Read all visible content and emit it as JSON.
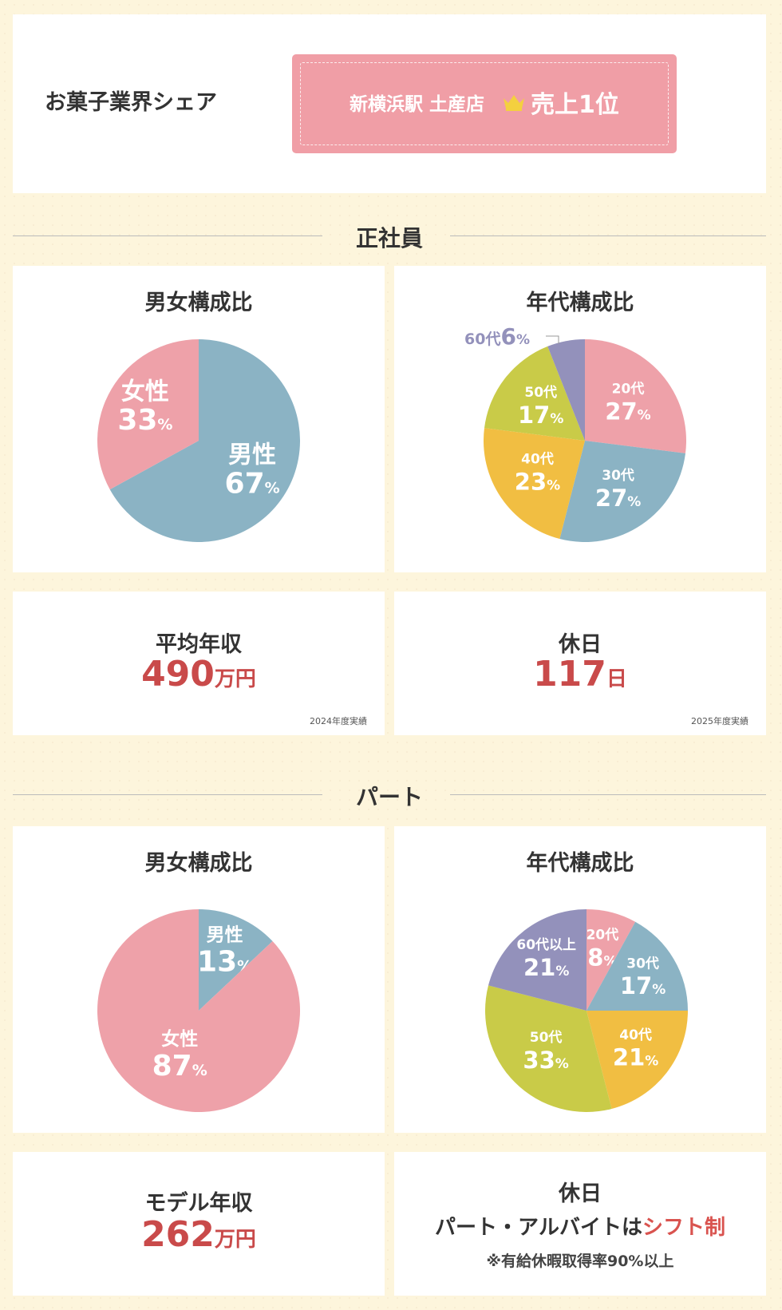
{
  "share": {
    "title": "お菓子業界シェア",
    "store": "新横浜駅 土産店",
    "rank": "売上1位",
    "crown_icon": "crown-icon",
    "color": "#f09ea6"
  },
  "colors": {
    "male": "#8bb3c4",
    "female": "#eea1a9",
    "age20": "#eea1a9",
    "age30": "#8bb3c4",
    "age40": "#f1be42",
    "age50": "#c9cb48",
    "age60": "#9391bb",
    "accent": "#c94a4a"
  },
  "fulltime": {
    "heading": "正社員",
    "salary": {
      "title": "平均年収",
      "value": "490",
      "unit": "万円",
      "note": "2024年度実績"
    },
    "holidays": {
      "title": "休日",
      "value": "117",
      "unit": "日",
      "note": "2025年度実績"
    }
  },
  "parttime": {
    "heading": "パート",
    "salary": {
      "title": "モデル年収",
      "value": "262",
      "unit": "万円"
    },
    "holidays": {
      "title": "休日",
      "shift_prefix": "パート・アルバイトは",
      "shift_accent": "シフト制",
      "note": "※有給休暇取得率90%以上"
    }
  },
  "chart_data": [
    {
      "type": "pie",
      "title": "男女構成比",
      "group": "正社員",
      "slices": [
        {
          "label": "男性",
          "value": 67,
          "display": "67",
          "unit": "%",
          "color": "#8bb3c4"
        },
        {
          "label": "女性",
          "value": 33,
          "display": "33",
          "unit": "%",
          "color": "#eea1a9"
        }
      ]
    },
    {
      "type": "pie",
      "title": "年代構成比",
      "group": "正社員",
      "slices": [
        {
          "label": "20代",
          "value": 27,
          "display": "27",
          "unit": "%",
          "color": "#eea1a9"
        },
        {
          "label": "30代",
          "value": 27,
          "display": "27",
          "unit": "%",
          "color": "#8bb3c4"
        },
        {
          "label": "40代",
          "value": 23,
          "display": "23",
          "unit": "%",
          "color": "#f1be42"
        },
        {
          "label": "50代",
          "value": 17,
          "display": "17",
          "unit": "%",
          "color": "#c9cb48"
        },
        {
          "label": "60代",
          "value": 6,
          "display": "6",
          "unit": "%",
          "color": "#9391bb"
        }
      ]
    },
    {
      "type": "pie",
      "title": "男女構成比",
      "group": "パート",
      "slices": [
        {
          "label": "男性",
          "value": 13,
          "display": "13",
          "unit": "%",
          "color": "#8bb3c4"
        },
        {
          "label": "女性",
          "value": 87,
          "display": "87",
          "unit": "%",
          "color": "#eea1a9"
        }
      ]
    },
    {
      "type": "pie",
      "title": "年代構成比",
      "group": "パート",
      "slices": [
        {
          "label": "20代",
          "value": 8,
          "display": "8",
          "unit": "%",
          "color": "#eea1a9"
        },
        {
          "label": "30代",
          "value": 17,
          "display": "17",
          "unit": "%",
          "color": "#8bb3c4"
        },
        {
          "label": "40代",
          "value": 21,
          "display": "21",
          "unit": "%",
          "color": "#f1be42"
        },
        {
          "label": "50代",
          "value": 33,
          "display": "33",
          "unit": "%",
          "color": "#c9cb48"
        },
        {
          "label": "60代以上",
          "value": 21,
          "display": "21",
          "unit": "%",
          "color": "#9391bb"
        }
      ]
    }
  ]
}
